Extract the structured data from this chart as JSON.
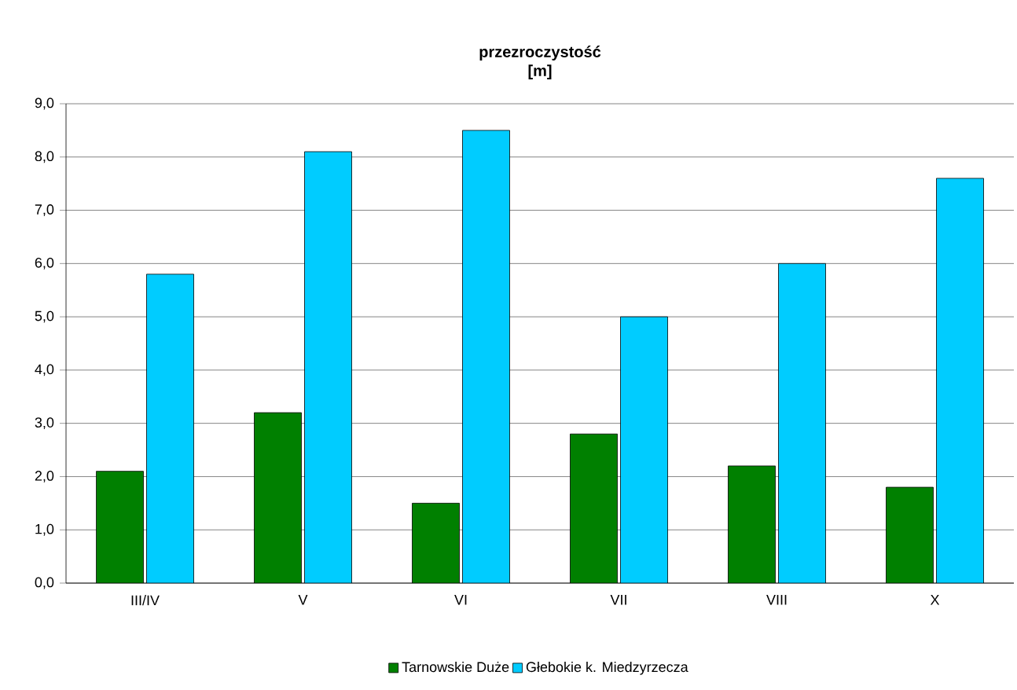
{
  "chart_data": {
    "type": "bar",
    "title": "przezroczystość",
    "subtitle": "[m]",
    "categories": [
      "III/IV",
      "V",
      "VI",
      "VII",
      "VIII",
      "X"
    ],
    "series": [
      {
        "name": "Tarnowskie Duże",
        "color": "#008000",
        "values": [
          2.1,
          3.2,
          1.5,
          2.8,
          2.2,
          1.8
        ]
      },
      {
        "name": "Głebokie k. Miedzyrzecza",
        "color": "#00ccff",
        "values": [
          5.8,
          8.1,
          8.5,
          5.0,
          6.0,
          7.6
        ]
      }
    ],
    "ylim": [
      0,
      9
    ],
    "yticks": [
      {
        "value": 0,
        "label": "0,0"
      },
      {
        "value": 1,
        "label": "1,0"
      },
      {
        "value": 2,
        "label": "2,0"
      },
      {
        "value": 3,
        "label": "3,0"
      },
      {
        "value": 4,
        "label": "4,0"
      },
      {
        "value": 5,
        "label": "5,0"
      },
      {
        "value": 6,
        "label": "6,0"
      },
      {
        "value": 7,
        "label": "7,0"
      },
      {
        "value": 8,
        "label": "8,0"
      },
      {
        "value": 9,
        "label": "9,0"
      }
    ],
    "grid": "y",
    "legend": "bottom"
  }
}
